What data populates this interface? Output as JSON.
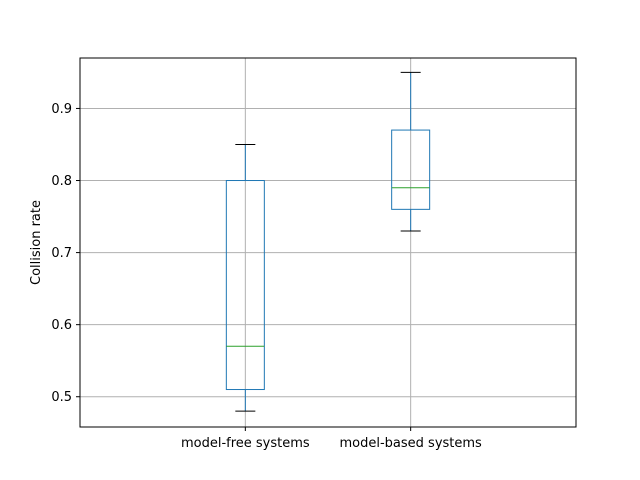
{
  "chart_data": {
    "type": "boxplot",
    "title": "",
    "xlabel": "",
    "ylabel": "Collision rate",
    "ylim": [
      0.458,
      0.97
    ],
    "yticks": [
      0.5,
      0.6,
      0.7,
      0.8,
      0.9
    ],
    "ytick_labels": [
      "0.5",
      "0.6",
      "0.7",
      "0.8",
      "0.9"
    ],
    "grid": true,
    "categories": [
      "model-free systems",
      "model-based systems"
    ],
    "boxes": [
      {
        "category": "model-free systems",
        "whisker_low": 0.48,
        "q1": 0.51,
        "median": 0.57,
        "q3": 0.8,
        "whisker_high": 0.85
      },
      {
        "category": "model-based systems",
        "whisker_low": 0.73,
        "q1": 0.76,
        "median": 0.79,
        "q3": 0.87,
        "whisker_high": 0.95
      }
    ],
    "colors": {
      "box": "#1f77b4",
      "median": "#2ca02c",
      "whisker_cap": "#000000",
      "grid": "#b0b0b0",
      "axes": "#000000"
    }
  }
}
